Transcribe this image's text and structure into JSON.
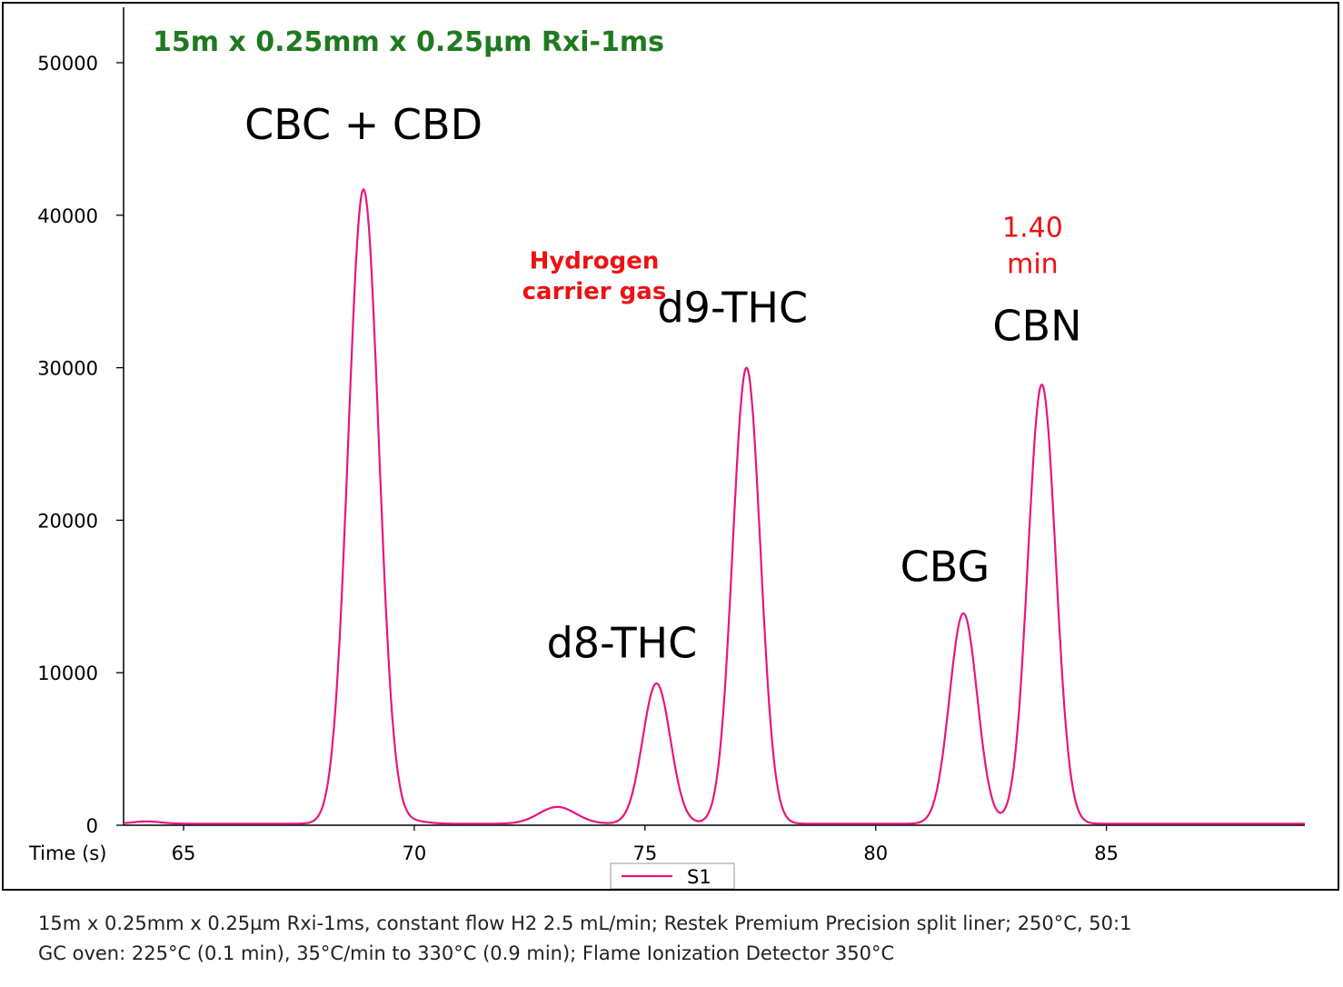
{
  "chart_data": {
    "type": "line",
    "title": "15m x 0.25mm x 0.25µm Rxi-1ms",
    "title_color": "#1f7a1f",
    "xlabel": "Time (s)",
    "ylabel": "",
    "xlim": [
      63.7,
      89.3
    ],
    "ylim": [
      0,
      50000
    ],
    "x_ticks": [
      65,
      70,
      75,
      80,
      85
    ],
    "y_ticks": [
      0,
      10000,
      20000,
      30000,
      40000,
      50000
    ],
    "grid": false,
    "legend_position": "bottom-center",
    "series": [
      {
        "name": "S1",
        "color": "#e8157e",
        "baseline": 100,
        "peaks": [
          {
            "label": "CBC + CBD",
            "rt": 68.9,
            "height": 41600,
            "width": 0.33
          },
          {
            "label": "",
            "rt": 73.1,
            "height": 1100,
            "width": 0.4
          },
          {
            "label": "d8-THC",
            "rt": 75.25,
            "height": 9200,
            "width": 0.3
          },
          {
            "label": "d9-THC",
            "rt": 77.2,
            "height": 29900,
            "width": 0.3
          },
          {
            "label": "CBG",
            "rt": 81.9,
            "height": 13800,
            "width": 0.3
          },
          {
            "label": "CBN",
            "rt": 83.6,
            "height": 28800,
            "width": 0.3
          }
        ]
      }
    ],
    "annotations": [
      {
        "id": "peak-cbc-cbd",
        "text": "CBC + CBD",
        "x": 68.9,
        "y": 45000,
        "color": "#000000",
        "size": "large"
      },
      {
        "id": "peak-d8",
        "text": "d8-THC",
        "x": 74.5,
        "y": 11000,
        "color": "#000000",
        "size": "large"
      },
      {
        "id": "peak-d9",
        "text": "d9-THC",
        "x": 76.9,
        "y": 33000,
        "color": "#000000",
        "size": "large"
      },
      {
        "id": "peak-cbg",
        "text": "CBG",
        "x": 81.5,
        "y": 16000,
        "color": "#000000",
        "size": "large"
      },
      {
        "id": "peak-cbn",
        "text": "CBN",
        "x": 83.5,
        "y": 31800,
        "color": "#000000",
        "size": "large"
      },
      {
        "id": "note-hydrogen",
        "text": "Hydrogen",
        "x": 73.9,
        "y": 36500,
        "color": "#ee1111",
        "size": "bold"
      },
      {
        "id": "note-carrier",
        "text": "carrier gas",
        "x": 73.9,
        "y": 34500,
        "color": "#ee1111",
        "size": "bold"
      },
      {
        "id": "note-time-value",
        "text": "1.40",
        "x": 83.4,
        "y": 38600,
        "color": "#ee1111",
        "size": "medium"
      },
      {
        "id": "note-time-unit",
        "text": "min",
        "x": 83.4,
        "y": 36200,
        "color": "#ee1111",
        "size": "medium"
      }
    ]
  },
  "footer": {
    "line1": "15m x 0.25mm x 0.25µm Rxi-1ms, constant flow H2 2.5 mL/min; Restek Premium Precision split liner; 250°C, 50:1",
    "line2": "GC oven: 225°C (0.1 min), 35°C/min to 330°C (0.9 min); Flame Ionization Detector 350°C"
  }
}
